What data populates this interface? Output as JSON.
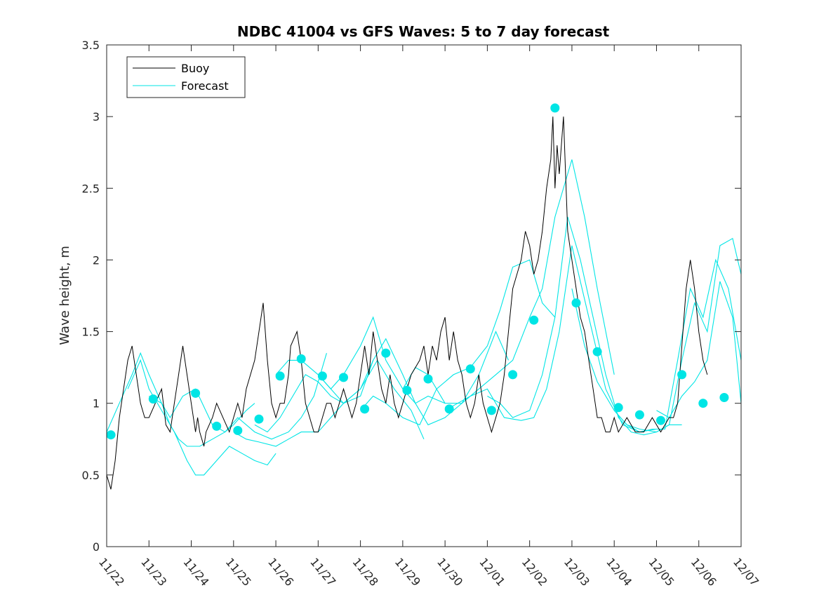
{
  "chart_data": {
    "type": "line",
    "title": "NDBC 41004 vs GFS Waves: 5 to 7 day forecast",
    "xlabel": "",
    "ylabel": "Wave height, m",
    "xlim": [
      0,
      15
    ],
    "ylim": [
      0,
      3.5
    ],
    "x_ticks": [
      0,
      1,
      2,
      3,
      4,
      5,
      6,
      7,
      8,
      9,
      10,
      11,
      12,
      13,
      14,
      15
    ],
    "x_tick_labels": [
      "11/22",
      "11/23",
      "11/24",
      "11/25",
      "11/26",
      "11/27",
      "11/28",
      "11/29",
      "11/30",
      "12/01",
      "12/02",
      "12/03",
      "12/04",
      "12/05",
      "12/06",
      "12/07"
    ],
    "y_ticks": [
      0,
      0.5,
      1,
      1.5,
      2,
      2.5,
      3,
      3.5
    ],
    "y_tick_labels": [
      "0",
      "0.5",
      "1",
      "1.5",
      "2",
      "2.5",
      "3",
      "3.5"
    ],
    "legend": {
      "position": "top-left",
      "entries": [
        "Buoy",
        "Forecast"
      ]
    },
    "colors": {
      "buoy": "#000000",
      "forecast": "#00e5e5",
      "markers": "#00e5e5",
      "axis": "#262626"
    },
    "buoy": {
      "name": "Buoy",
      "x": [
        0,
        0.1,
        0.2,
        0.3,
        0.4,
        0.5,
        0.6,
        0.7,
        0.8,
        0.9,
        1.0,
        1.15,
        1.3,
        1.4,
        1.5,
        1.6,
        1.7,
        1.8,
        1.9,
        2.0,
        2.1,
        2.15,
        2.2,
        2.3,
        2.35,
        2.5,
        2.6,
        2.75,
        2.9,
        3.0,
        3.1,
        3.2,
        3.3,
        3.5,
        3.6,
        3.7,
        3.8,
        3.9,
        4.0,
        4.1,
        4.2,
        4.3,
        4.35,
        4.5,
        4.6,
        4.7,
        4.8,
        4.9,
        5.0,
        5.1,
        5.2,
        5.3,
        5.4,
        5.5,
        5.6,
        5.7,
        5.8,
        5.9,
        6.0,
        6.1,
        6.2,
        6.3,
        6.4,
        6.5,
        6.6,
        6.7,
        6.8,
        6.9,
        7.0,
        7.1,
        7.2,
        7.4,
        7.5,
        7.6,
        7.7,
        7.8,
        7.9,
        8.0,
        8.1,
        8.2,
        8.3,
        8.4,
        8.5,
        8.6,
        8.7,
        8.8,
        8.9,
        9.0,
        9.1,
        9.2,
        9.3,
        9.4,
        9.5,
        9.6,
        9.7,
        9.8,
        9.9,
        10.0,
        10.1,
        10.2,
        10.3,
        10.4,
        10.5,
        10.55,
        10.6,
        10.65,
        10.7,
        10.8,
        10.9,
        11.0,
        11.1,
        11.2,
        11.3,
        11.4,
        11.5,
        11.6,
        11.7,
        11.8,
        11.9,
        12.0,
        12.1,
        12.3,
        12.5,
        12.7,
        12.9,
        13.1,
        13.3,
        13.4,
        13.5,
        13.6,
        13.7,
        13.8,
        13.9,
        14.0,
        14.1,
        14.2
      ],
      "y": [
        0.5,
        0.4,
        0.6,
        0.9,
        1.1,
        1.3,
        1.4,
        1.2,
        1.0,
        0.9,
        0.9,
        1.0,
        1.1,
        0.85,
        0.8,
        1.0,
        1.2,
        1.4,
        1.2,
        1.0,
        0.8,
        0.9,
        0.8,
        0.7,
        0.8,
        0.9,
        1.0,
        0.9,
        0.8,
        0.9,
        1.0,
        0.9,
        1.1,
        1.3,
        1.5,
        1.7,
        1.3,
        1.0,
        0.9,
        1.0,
        1.0,
        1.2,
        1.4,
        1.5,
        1.3,
        1.0,
        0.9,
        0.8,
        0.8,
        0.9,
        1.0,
        1.0,
        0.9,
        1.0,
        1.1,
        1.0,
        0.9,
        1.0,
        1.2,
        1.4,
        1.2,
        1.5,
        1.3,
        1.1,
        1.0,
        1.2,
        1.0,
        0.9,
        1.0,
        1.1,
        1.2,
        1.3,
        1.4,
        1.2,
        1.4,
        1.3,
        1.5,
        1.6,
        1.3,
        1.5,
        1.3,
        1.2,
        1.0,
        0.9,
        1.0,
        1.2,
        1.0,
        0.9,
        0.8,
        0.9,
        1.0,
        1.2,
        1.5,
        1.8,
        1.9,
        2.0,
        2.2,
        2.1,
        1.9,
        2.0,
        2.2,
        2.5,
        2.7,
        3.0,
        2.5,
        2.8,
        2.6,
        3.0,
        2.2,
        2.0,
        1.8,
        1.6,
        1.5,
        1.3,
        1.1,
        0.9,
        0.9,
        0.8,
        0.8,
        0.9,
        0.8,
        0.9,
        0.8,
        0.8,
        0.9,
        0.8,
        0.9,
        0.9,
        1.0,
        1.4,
        1.8,
        2.0,
        1.8,
        1.5,
        1.3,
        1.2
      ]
    },
    "forecast_lines": [
      {
        "x": [
          0.0,
          0.3,
          0.6,
          0.8,
          1.0,
          1.3,
          1.5,
          1.7,
          1.9,
          2.2,
          2.5,
          2.8,
          3.0,
          3.3,
          3.5
        ],
        "y": [
          0.8,
          1.0,
          1.2,
          1.35,
          1.2,
          1.0,
          0.85,
          0.75,
          0.7,
          0.7,
          0.75,
          0.8,
          0.85,
          0.95,
          1.0
        ]
      },
      {
        "x": [
          0.5,
          0.8,
          1.0,
          1.3,
          1.6,
          1.9,
          2.1,
          2.3,
          2.6,
          2.9,
          3.2,
          3.5,
          3.8,
          4.0
        ],
        "y": [
          1.1,
          1.3,
          1.1,
          0.95,
          0.8,
          0.6,
          0.5,
          0.5,
          0.6,
          0.7,
          0.65,
          0.6,
          0.57,
          0.65
        ]
      },
      {
        "x": [
          1.0,
          1.3,
          1.5,
          1.8,
          2.1,
          2.5,
          2.8,
          3.1,
          3.5,
          3.9,
          4.3,
          4.6,
          4.9,
          5.2
        ],
        "y": [
          1.05,
          1.0,
          0.9,
          1.05,
          1.1,
          0.85,
          0.8,
          0.9,
          0.8,
          0.75,
          0.8,
          0.9,
          1.05,
          1.35
        ]
      },
      {
        "x": [
          3.0,
          3.3,
          3.6,
          4.0,
          4.3,
          4.6,
          5.0,
          5.3,
          5.6,
          6.0,
          6.3
        ],
        "y": [
          0.8,
          0.75,
          0.73,
          0.7,
          0.75,
          0.8,
          0.8,
          0.9,
          1.0,
          1.1,
          1.3
        ]
      },
      {
        "x": [
          3.5,
          3.8,
          4.1,
          4.4,
          4.7,
          5.0,
          5.3,
          5.6,
          6.0,
          6.4,
          6.8,
          7.2,
          7.5
        ],
        "y": [
          0.85,
          0.8,
          0.9,
          1.05,
          1.2,
          1.15,
          1.05,
          1.0,
          1.1,
          1.3,
          1.1,
          0.95,
          0.75
        ]
      },
      {
        "x": [
          4.0,
          4.3,
          4.6,
          5.0,
          5.3,
          5.6,
          6.0,
          6.3,
          6.6,
          7.0,
          7.3,
          7.6,
          8.0
        ],
        "y": [
          1.2,
          1.3,
          1.3,
          1.2,
          1.1,
          1.2,
          1.4,
          1.6,
          1.3,
          1.1,
          1.0,
          1.05,
          1.0
        ]
      },
      {
        "x": [
          5.0,
          5.3,
          5.6,
          6.0,
          6.3,
          6.6,
          7.0,
          7.3,
          7.6,
          8.0,
          8.4,
          8.8,
          9.2,
          9.5
        ],
        "y": [
          1.2,
          1.1,
          1.0,
          1.05,
          1.3,
          1.45,
          1.2,
          1.0,
          0.85,
          0.9,
          1.0,
          1.2,
          1.5,
          1.3
        ]
      },
      {
        "x": [
          6.0,
          6.3,
          6.6,
          7.0,
          7.4,
          7.8,
          8.2,
          8.6,
          9.0,
          9.3,
          9.6,
          10.0,
          10.3,
          10.6
        ],
        "y": [
          0.95,
          1.05,
          1.0,
          0.9,
          0.85,
          1.1,
          1.2,
          1.25,
          1.4,
          1.65,
          1.95,
          2.0,
          1.7,
          1.6
        ]
      },
      {
        "x": [
          7.0,
          7.3,
          7.6,
          8.0,
          8.4,
          8.8,
          9.2,
          9.6,
          10.0,
          10.3,
          10.6,
          11.0,
          11.3,
          11.6,
          12.0
        ],
        "y": [
          1.1,
          1.25,
          1.2,
          1.0,
          1.0,
          1.1,
          1.2,
          1.3,
          1.6,
          1.8,
          2.3,
          2.7,
          2.3,
          1.8,
          1.2
        ]
      },
      {
        "x": [
          8.0,
          8.3,
          8.6,
          9.0,
          9.4,
          9.8,
          10.1,
          10.4,
          10.7,
          11.0,
          11.4,
          11.8,
          12.2,
          12.6,
          13.0
        ],
        "y": [
          0.95,
          1.0,
          1.05,
          1.1,
          0.9,
          0.88,
          0.9,
          1.1,
          1.5,
          2.1,
          1.6,
          1.1,
          0.85,
          0.8,
          0.82
        ]
      },
      {
        "x": [
          9.0,
          9.3,
          9.6,
          10.0,
          10.3,
          10.6,
          10.9,
          11.2,
          11.5,
          11.8,
          12.1,
          12.4,
          12.7,
          13.0,
          13.3,
          13.6
        ],
        "y": [
          1.05,
          1.0,
          0.9,
          0.95,
          1.2,
          1.6,
          2.3,
          2.0,
          1.6,
          1.2,
          0.9,
          0.8,
          0.78,
          0.8,
          0.85,
          0.85
        ]
      },
      {
        "x": [
          11.0,
          11.3,
          11.6,
          12.0,
          12.3,
          12.6,
          12.9,
          13.2,
          13.5,
          13.8,
          14.1,
          14.4,
          14.7,
          15.0
        ],
        "y": [
          1.8,
          1.4,
          1.15,
          0.95,
          0.85,
          0.8,
          0.82,
          0.82,
          1.3,
          1.8,
          1.6,
          2.0,
          1.8,
          1.3
        ]
      },
      {
        "x": [
          12.0,
          12.3,
          12.6,
          13.0,
          13.3,
          13.6,
          13.9,
          14.2,
          14.5,
          14.8,
          15.0
        ],
        "y": [
          0.95,
          0.85,
          0.82,
          0.8,
          0.85,
          1.3,
          1.7,
          1.5,
          2.1,
          2.15,
          1.9
        ]
      },
      {
        "x": [
          13.0,
          13.3,
          13.6,
          13.9,
          14.2,
          14.5,
          14.8,
          15.0
        ],
        "y": [
          0.95,
          0.9,
          1.05,
          1.15,
          1.3,
          1.85,
          1.6,
          1.0
        ]
      }
    ],
    "forecast_points": {
      "x": [
        0.1,
        1.1,
        2.1,
        2.6,
        3.1,
        3.6,
        4.1,
        4.6,
        5.1,
        5.6,
        6.1,
        6.6,
        7.1,
        7.6,
        8.1,
        8.6,
        9.1,
        9.6,
        10.1,
        10.6,
        11.1,
        11.6,
        12.1,
        12.6,
        13.1,
        13.6,
        14.1,
        14.6
      ],
      "y": [
        0.78,
        1.03,
        1.07,
        0.84,
        0.81,
        0.89,
        1.19,
        1.31,
        1.19,
        1.18,
        0.96,
        1.35,
        1.09,
        1.17,
        0.96,
        1.24,
        0.95,
        1.2,
        1.58,
        3.06,
        1.7,
        1.36,
        0.97,
        0.92,
        0.88,
        1.2,
        1.0,
        1.04
      ]
    }
  }
}
